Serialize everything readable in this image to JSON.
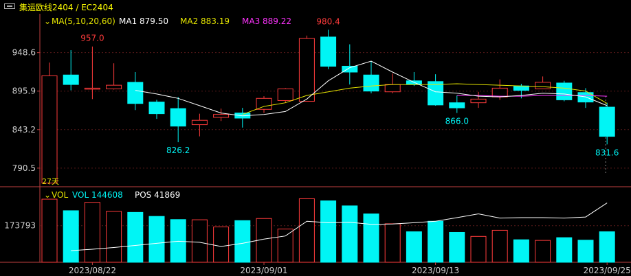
{
  "title": "集运欧线2404 / EC2404",
  "colors": {
    "up": "#ff3b3b",
    "down": "#00f5f5",
    "ma1": "#ffffff",
    "ma2": "#e6e600",
    "ma3": "#ff33ff",
    "axis": "#c04040",
    "grid": "#5a1a1a"
  },
  "price_legend": {
    "ma_name": "MA(5,10,20,60)",
    "ma1": "MA1 879.50",
    "ma2": "MA2 883.19",
    "ma3": "MA3 889.22"
  },
  "vol_legend": {
    "name": "VOL",
    "vol": "VOL 144608",
    "pos": "POS 41869"
  },
  "days_label": "27天",
  "chart_data": {
    "type": "candlestick",
    "price_ticks": [
      "948.6",
      "895.9",
      "843.2",
      "790.5"
    ],
    "price_tick_values": [
      948.6,
      895.9,
      843.2,
      790.5
    ],
    "price_range": [
      765,
      1000
    ],
    "volume_tick": "173793",
    "volume_tick_value": 173793,
    "volume_range": [
      0,
      310000
    ],
    "x_labels": [
      {
        "label": "2023/08/22",
        "index": 2
      },
      {
        "label": "2023/09/01",
        "index": 10
      },
      {
        "label": "2023/09/13",
        "index": 18
      },
      {
        "label": "2023/09/25",
        "index": 26
      }
    ],
    "annotations": [
      {
        "index": 2,
        "text": "957.0",
        "anchor": "high"
      },
      {
        "index": 6,
        "text": "826.2",
        "anchor": "low"
      },
      {
        "index": 13,
        "text": "980.4",
        "anchor": "high"
      },
      {
        "index": 19,
        "text": "866.0",
        "anchor": "low"
      },
      {
        "index": 26,
        "text": "831.6",
        "anchor": "low"
      }
    ],
    "candles": [
      {
        "o": 770,
        "h": 935,
        "l": 768,
        "c": 917
      },
      {
        "o": 918,
        "h": 952,
        "l": 897,
        "c": 905
      },
      {
        "o": 900,
        "h": 957,
        "l": 885,
        "c": 900
      },
      {
        "o": 899,
        "h": 934,
        "l": 898,
        "c": 904
      },
      {
        "o": 908,
        "h": 922,
        "l": 870,
        "c": 879
      },
      {
        "o": 881,
        "h": 884,
        "l": 858,
        "c": 865
      },
      {
        "o": 872,
        "h": 888,
        "l": 826,
        "c": 848
      },
      {
        "o": 850,
        "h": 865,
        "l": 834,
        "c": 856
      },
      {
        "o": 860,
        "h": 872,
        "l": 855,
        "c": 864
      },
      {
        "o": 866,
        "h": 873,
        "l": 846,
        "c": 859
      },
      {
        "o": 871,
        "h": 889,
        "l": 866,
        "c": 886
      },
      {
        "o": 883,
        "h": 900,
        "l": 880,
        "c": 899
      },
      {
        "o": 882,
        "h": 972,
        "l": 882,
        "c": 968
      },
      {
        "o": 970,
        "h": 980,
        "l": 926,
        "c": 930
      },
      {
        "o": 930,
        "h": 960,
        "l": 905,
        "c": 922
      },
      {
        "o": 918,
        "h": 937,
        "l": 893,
        "c": 896
      },
      {
        "o": 895,
        "h": 920,
        "l": 893,
        "c": 905
      },
      {
        "o": 910,
        "h": 922,
        "l": 903,
        "c": 905
      },
      {
        "o": 909,
        "h": 919,
        "l": 876,
        "c": 877
      },
      {
        "o": 880,
        "h": 890,
        "l": 866,
        "c": 873
      },
      {
        "o": 880,
        "h": 895,
        "l": 873,
        "c": 885
      },
      {
        "o": 888,
        "h": 912,
        "l": 884,
        "c": 900
      },
      {
        "o": 903,
        "h": 906,
        "l": 886,
        "c": 897
      },
      {
        "o": 899,
        "h": 916,
        "l": 899,
        "c": 908
      },
      {
        "o": 907,
        "h": 910,
        "l": 882,
        "c": 884
      },
      {
        "o": 894,
        "h": 900,
        "l": 873,
        "c": 881
      },
      {
        "o": 874,
        "h": 880,
        "l": 823,
        "c": 834
      }
    ],
    "volume": [
      300000,
      245000,
      285000,
      242000,
      237000,
      218000,
      203000,
      202000,
      168000,
      198000,
      208000,
      158000,
      302000,
      292000,
      268000,
      230000,
      183000,
      145000,
      195000,
      142000,
      123000,
      152000,
      107000,
      104000,
      117000,
      105000,
      145000
    ],
    "ma1_line": [
      null,
      null,
      null,
      null,
      897,
      892,
      886,
      876,
      866,
      862,
      864,
      868,
      885,
      910,
      928,
      937,
      922,
      908,
      895,
      893,
      889,
      888,
      890,
      893,
      892,
      888,
      876
    ],
    "ma2_line": [
      null,
      null,
      null,
      null,
      null,
      null,
      null,
      null,
      null,
      864,
      875,
      880,
      890,
      895,
      900,
      903,
      905,
      905,
      905,
      906,
      905,
      904,
      903,
      902,
      900,
      896,
      879
    ],
    "ma3_line": [
      null,
      null,
      null,
      null,
      null,
      null,
      null,
      null,
      null,
      null,
      null,
      null,
      null,
      null,
      null,
      null,
      null,
      null,
      null,
      890,
      890,
      889,
      889,
      890,
      890,
      890,
      889
    ],
    "pos_line": [
      null,
      55000,
      62000,
      70000,
      80000,
      90000,
      100000,
      95000,
      75000,
      90000,
      110000,
      125000,
      195000,
      188000,
      190000,
      180000,
      182000,
      188000,
      195000,
      212000,
      230000,
      210000,
      212000,
      212000,
      210000,
      215000,
      282000
    ]
  }
}
